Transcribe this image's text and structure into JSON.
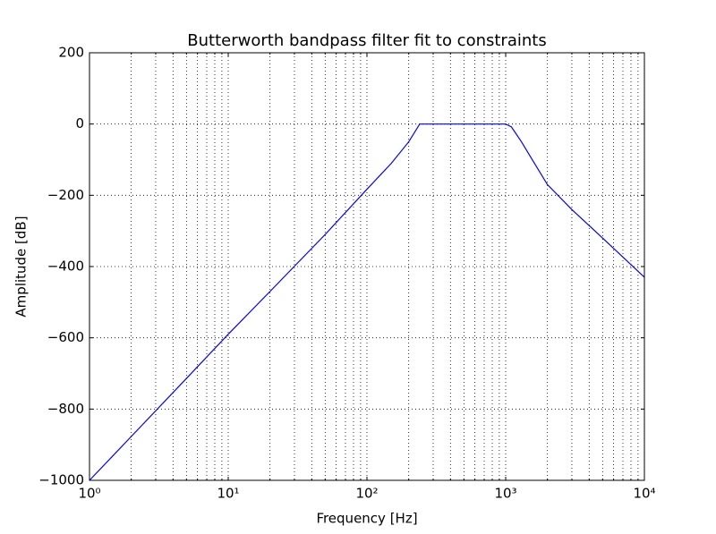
{
  "chart_data": {
    "type": "line",
    "title": "Butterworth bandpass filter fit to constraints",
    "xlabel": "Frequency [Hz]",
    "ylabel": "Amplitude [dB]",
    "xscale": "log",
    "grid": true,
    "color": "#0000ff",
    "x": [
      1,
      2,
      5,
      10,
      20,
      50,
      100,
      150,
      200,
      240,
      300,
      500,
      800,
      1000,
      1100,
      1300,
      1500,
      2000,
      3000,
      5000,
      10000
    ],
    "values": [
      -1000,
      -877,
      -714,
      -590,
      -470,
      -310,
      -183,
      -110,
      -50,
      0,
      0,
      0,
      0,
      0,
      -8,
      -50,
      -90,
      -170,
      -240,
      -320,
      -430
    ],
    "xlim": [
      1,
      10000
    ],
    "ylim": [
      -1000,
      200
    ],
    "xticks": [
      {
        "value": 1,
        "label": "10⁰"
      },
      {
        "value": 10,
        "label": "10¹"
      },
      {
        "value": 100,
        "label": "10²"
      },
      {
        "value": 1000,
        "label": "10³"
      },
      {
        "value": 10000,
        "label": "10⁴"
      }
    ],
    "xminorticks": [
      2,
      3,
      4,
      5,
      6,
      7,
      8,
      9,
      20,
      30,
      40,
      50,
      60,
      70,
      80,
      90,
      200,
      300,
      400,
      500,
      600,
      700,
      800,
      900,
      2000,
      3000,
      4000,
      5000,
      6000,
      7000,
      8000,
      9000
    ],
    "yticks": [
      200,
      0,
      {
        "value": -200,
        "label": "−200"
      },
      {
        "value": -400,
        "label": "−400"
      },
      {
        "value": -600,
        "label": "−600"
      },
      {
        "value": -800,
        "label": "−800"
      },
      {
        "value": -1000,
        "label": "−1000"
      }
    ]
  }
}
